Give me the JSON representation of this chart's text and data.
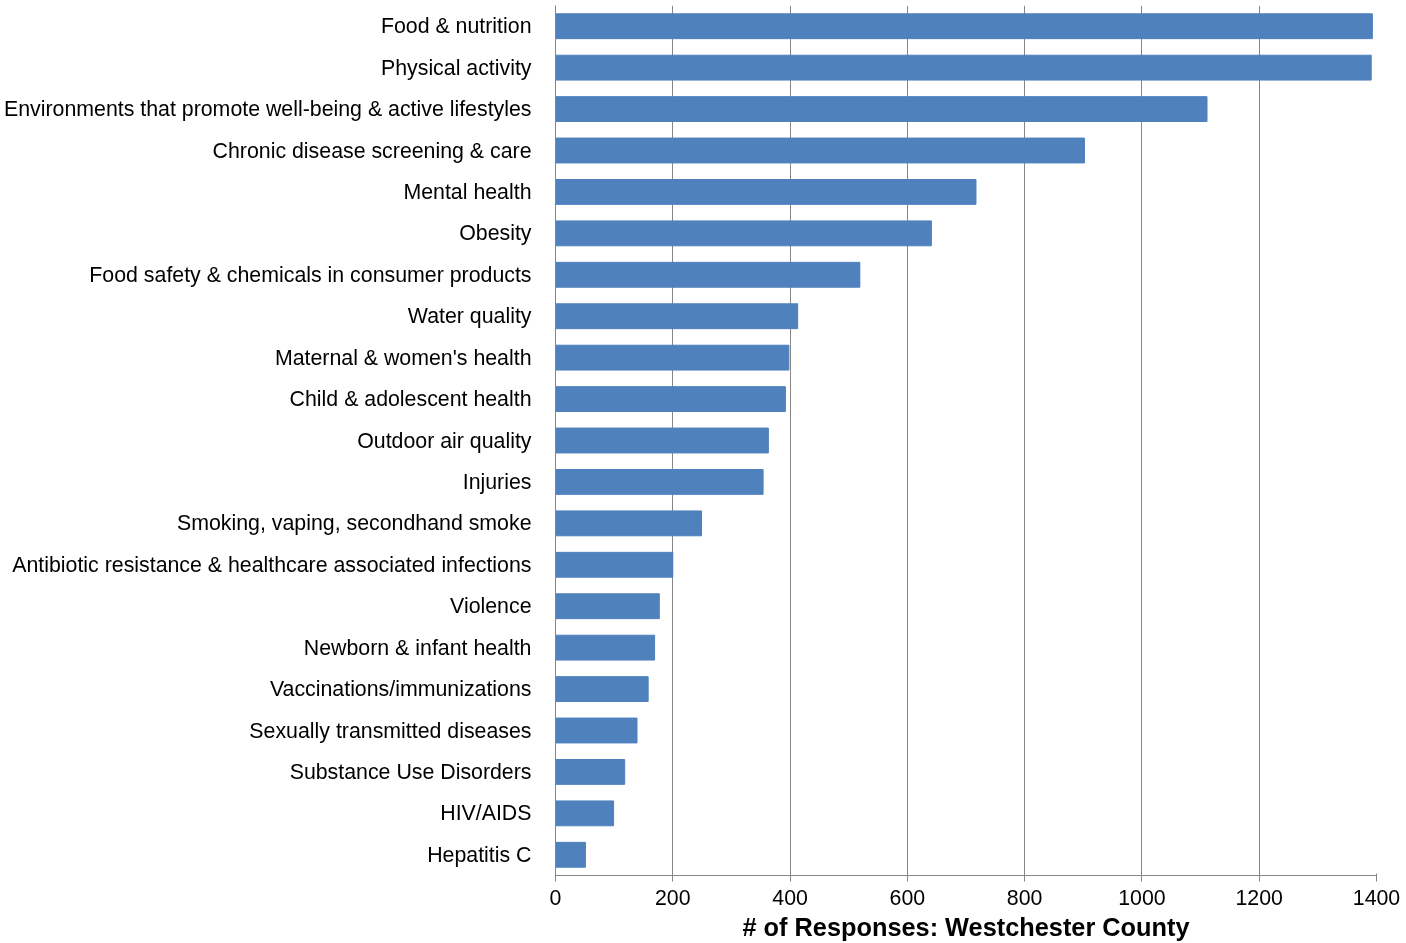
{
  "chart_data": {
    "type": "bar",
    "orientation": "horizontal",
    "xlabel": "# of Responses: Westchester County",
    "categories": [
      "Food & nutrition",
      "Physical activity",
      "Environments that promote well-being & active lifestyles",
      "Chronic disease screening & care",
      "Mental health",
      "Obesity",
      "Food safety & chemicals in consumer products",
      "Water quality",
      "Maternal & women's health",
      "Child & adolescent health",
      "Outdoor air quality",
      "Injuries",
      "Smoking, vaping, secondhand smoke",
      "Antibiotic resistance & healthcare associated infections",
      "Violence",
      "Newborn & infant health",
      "Vaccinations/immunizations",
      "Sexually transmitted diseases",
      "Substance Use Disorders",
      "HIV/AIDS",
      "Hepatitis C"
    ],
    "values": [
      1393,
      1391,
      1111,
      902,
      717,
      641,
      519,
      413,
      398,
      392,
      363,
      354,
      249,
      200,
      177,
      169,
      158,
      139,
      118,
      99,
      51
    ],
    "color": "#4f81bd",
    "xlim": [
      0,
      1400
    ],
    "xticks": [
      0,
      200,
      400,
      600,
      800,
      1000,
      1200,
      1400
    ],
    "grid": "x"
  }
}
